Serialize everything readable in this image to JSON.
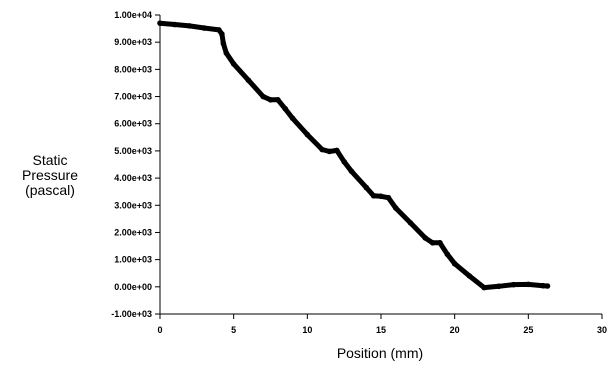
{
  "chart_data": {
    "type": "scatter",
    "title": "",
    "ylabel_lines": [
      "Static",
      "Pressure",
      "(pascal)"
    ],
    "xlabel": "Position (mm)",
    "xlim": [
      0,
      30
    ],
    "ylim": [
      -1000,
      10000
    ],
    "x_ticks": [
      "0",
      "5",
      "10",
      "15",
      "20",
      "25",
      "30"
    ],
    "y_ticks": [
      "-1.00e+03",
      "0.00e+00",
      "1.00e+03",
      "2.00e+03",
      "3.00e+03",
      "4.00e+03",
      "5.00e+03",
      "6.00e+03",
      "7.00e+03",
      "8.00e+03",
      "9.00e+03",
      "1.00e+04"
    ],
    "grid": false,
    "marker_color": "#000000",
    "series": [
      {
        "x": [
          0.0,
          1.0,
          2.0,
          3.0,
          4.0,
          4.2,
          4.3,
          4.5,
          5.0,
          6.0,
          7.0,
          7.5,
          8.0,
          8.5,
          9.0,
          10.0,
          11.0,
          11.5,
          12.0,
          12.5,
          13.0,
          14.0,
          14.5,
          15.0,
          15.5,
          16.0,
          17.0,
          18.0,
          18.5,
          19.0,
          19.5,
          20.0,
          21.0,
          22.0,
          23.0,
          24.0,
          25.0,
          26.0,
          26.3
        ],
        "y": [
          9700,
          9650,
          9600,
          9520,
          9450,
          9300,
          8950,
          8600,
          8200,
          7600,
          7000,
          6880,
          6880,
          6550,
          6200,
          5600,
          5050,
          4980,
          5020,
          4600,
          4250,
          3650,
          3350,
          3330,
          3280,
          2900,
          2350,
          1800,
          1620,
          1620,
          1200,
          850,
          400,
          -30,
          20,
          80,
          90,
          40,
          30
        ]
      }
    ]
  }
}
